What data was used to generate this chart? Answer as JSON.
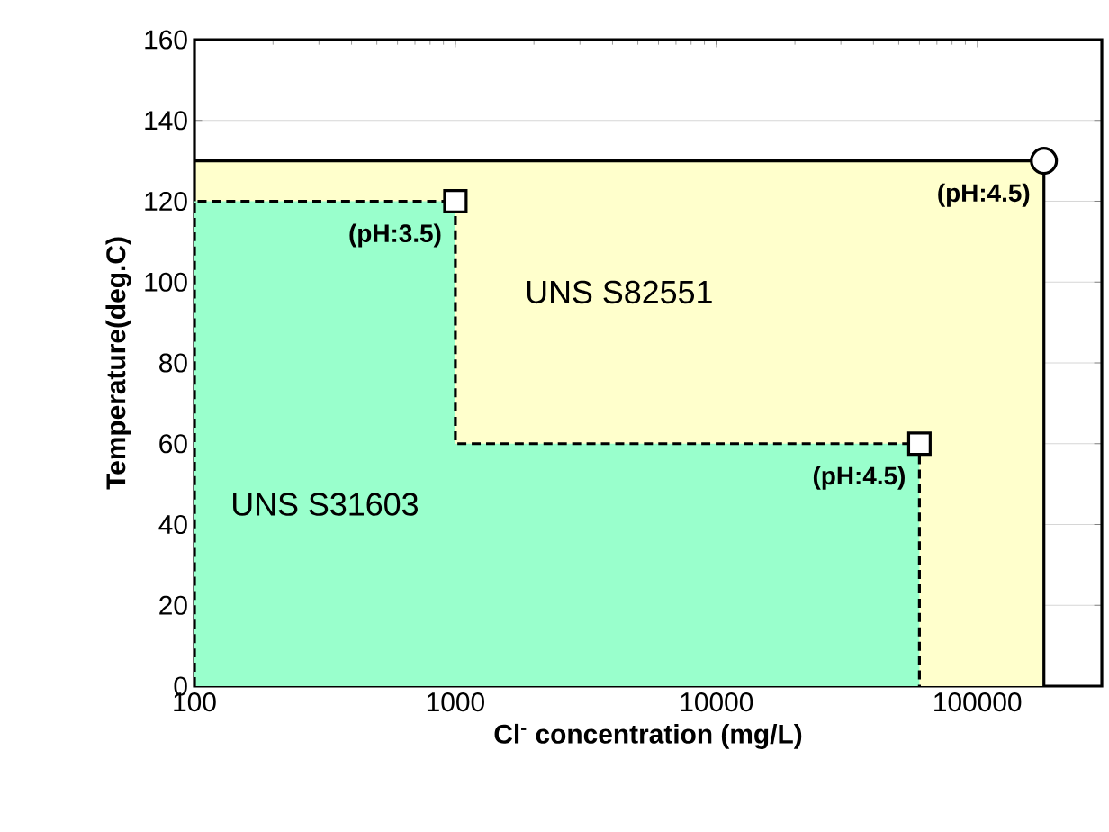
{
  "chart_data": {
    "type": "area",
    "xlabel": "Cl$^{-}$ concentration (mg/L)",
    "ylabel": "Temperature(deg.C)",
    "log": "x",
    "xlim": [
      100,
      300000
    ],
    "ylim": [
      0,
      160
    ],
    "xticks": [
      100,
      1000,
      10000,
      100000
    ],
    "yticks": [
      0,
      20,
      40,
      60,
      80,
      100,
      120,
      140,
      160
    ],
    "grid": "y",
    "series": [
      {
        "name": "UNS S82551",
        "color": "#ffffcc",
        "line_style": "solid",
        "x": [
          100,
          100,
          180000,
          180000
        ],
        "values": [
          0,
          130,
          130,
          0
        ]
      },
      {
        "name": "UNS S31603",
        "color": "#99ffcc",
        "line_style": "dashed",
        "x": [
          100,
          100,
          1000,
          1000,
          60000,
          60000
        ],
        "values": [
          0,
          120,
          120,
          60,
          60,
          0
        ]
      },
      {
        "type": "scatter",
        "color": "#ffffff",
        "marker": "square",
        "x": [
          1000,
          60000
        ],
        "values": [
          120,
          60
        ]
      },
      {
        "type": "scatter",
        "color": "#ffffff",
        "marker": "circle",
        "x": [
          180000
        ],
        "values": [
          130
        ]
      }
    ],
    "annotations": [
      {
        "text": "(pH:3.5)",
        "x": 1000,
        "y": 120
      },
      {
        "text": "(pH:4.5)",
        "x": 60000,
        "y": 60
      },
      {
        "text": "(pH:4.5)",
        "x": 180000,
        "y": 130
      }
    ]
  }
}
